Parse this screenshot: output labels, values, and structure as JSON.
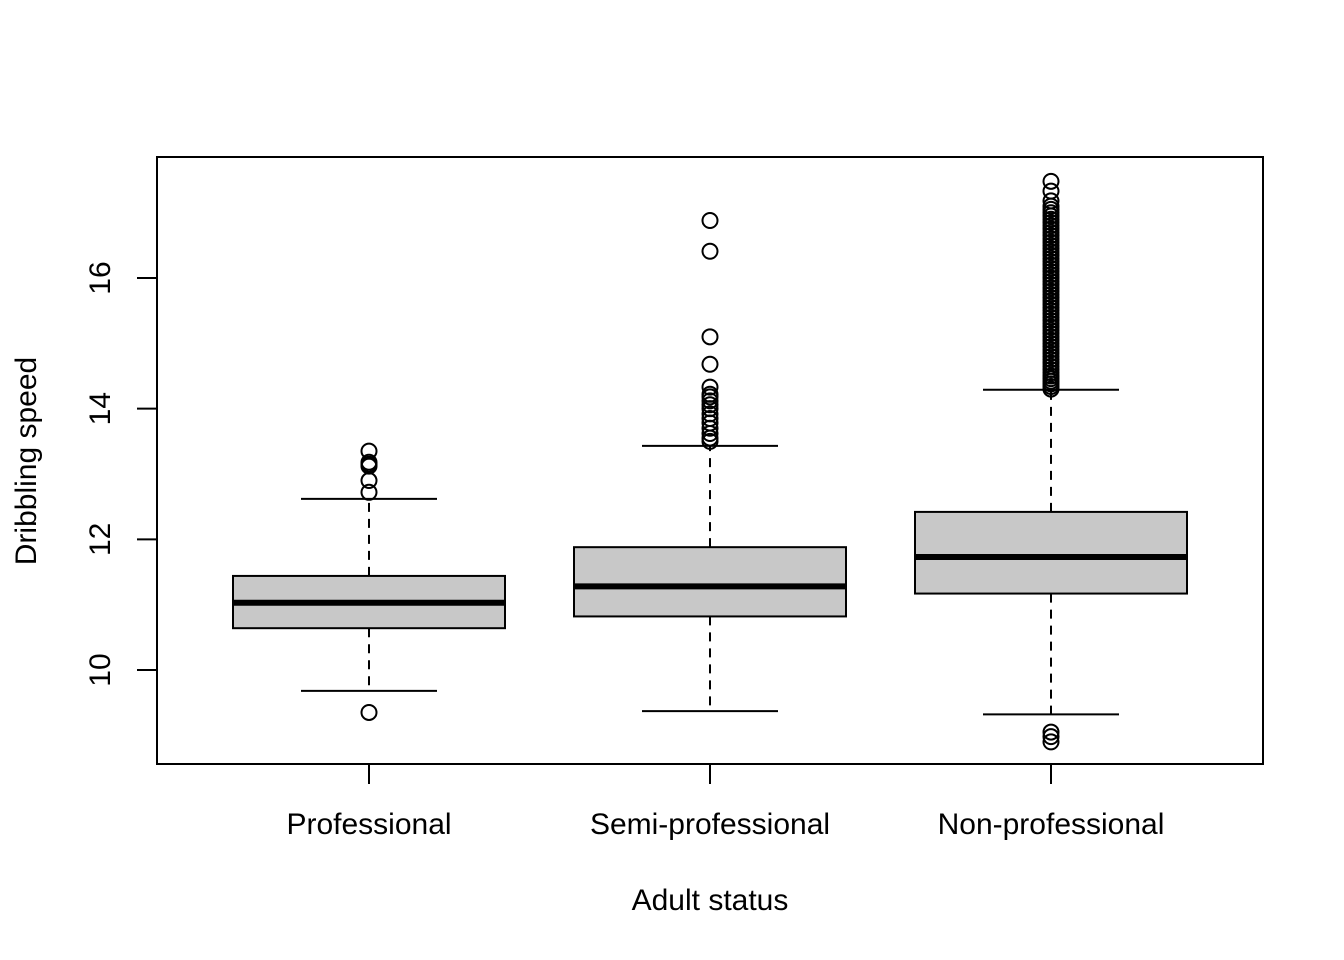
{
  "chart_data": {
    "type": "boxplot",
    "title": "",
    "xlabel": "Adult status",
    "ylabel": "Dribbling speed",
    "ylim": [
      8.6,
      17.85
    ],
    "yticks": [
      10,
      12,
      14,
      16
    ],
    "ytick_labels": [
      "10",
      "12",
      "14",
      "16"
    ],
    "grid": false,
    "box_fill": "#c8c8c8",
    "line_color": "#000000",
    "categories": [
      "Professional",
      "Semi-professional",
      "Non-professional"
    ],
    "boxes": [
      {
        "category": "Professional",
        "whisker_low": 9.68,
        "q1": 10.64,
        "median": 11.03,
        "q3": 11.44,
        "whisker_high": 12.62,
        "outliers": [
          9.35,
          12.72,
          12.9,
          13.12,
          13.15,
          13.18,
          13.35
        ]
      },
      {
        "category": "Semi-professional",
        "whisker_low": 9.37,
        "q1": 10.82,
        "median": 11.28,
        "q3": 11.88,
        "whisker_high": 13.43,
        "outliers": [
          13.5,
          13.55,
          13.62,
          13.7,
          13.78,
          13.85,
          13.92,
          14.0,
          14.06,
          14.12,
          14.18,
          14.22,
          14.33,
          14.68,
          15.1,
          16.41,
          16.88
        ]
      },
      {
        "category": "Non-professional",
        "whisker_low": 9.32,
        "q1": 11.17,
        "median": 11.73,
        "q3": 12.42,
        "whisker_high": 14.29,
        "outliers": [
          8.9,
          8.98,
          9.05,
          14.3,
          14.34,
          14.38,
          14.42,
          14.46,
          14.5,
          14.55,
          14.6,
          14.65,
          14.7,
          14.75,
          14.8,
          14.85,
          14.9,
          14.95,
          15.0,
          15.05,
          15.1,
          15.15,
          15.2,
          15.25,
          15.3,
          15.35,
          15.4,
          15.45,
          15.5,
          15.55,
          15.6,
          15.65,
          15.7,
          15.75,
          15.8,
          15.85,
          15.9,
          15.95,
          16.0,
          16.05,
          16.1,
          16.15,
          16.2,
          16.25,
          16.3,
          16.35,
          16.4,
          16.45,
          16.5,
          16.55,
          16.6,
          16.65,
          16.7,
          16.75,
          16.8,
          16.85,
          16.9,
          16.95,
          17.0,
          17.05,
          17.1,
          17.18,
          17.33,
          17.48
        ]
      }
    ]
  }
}
